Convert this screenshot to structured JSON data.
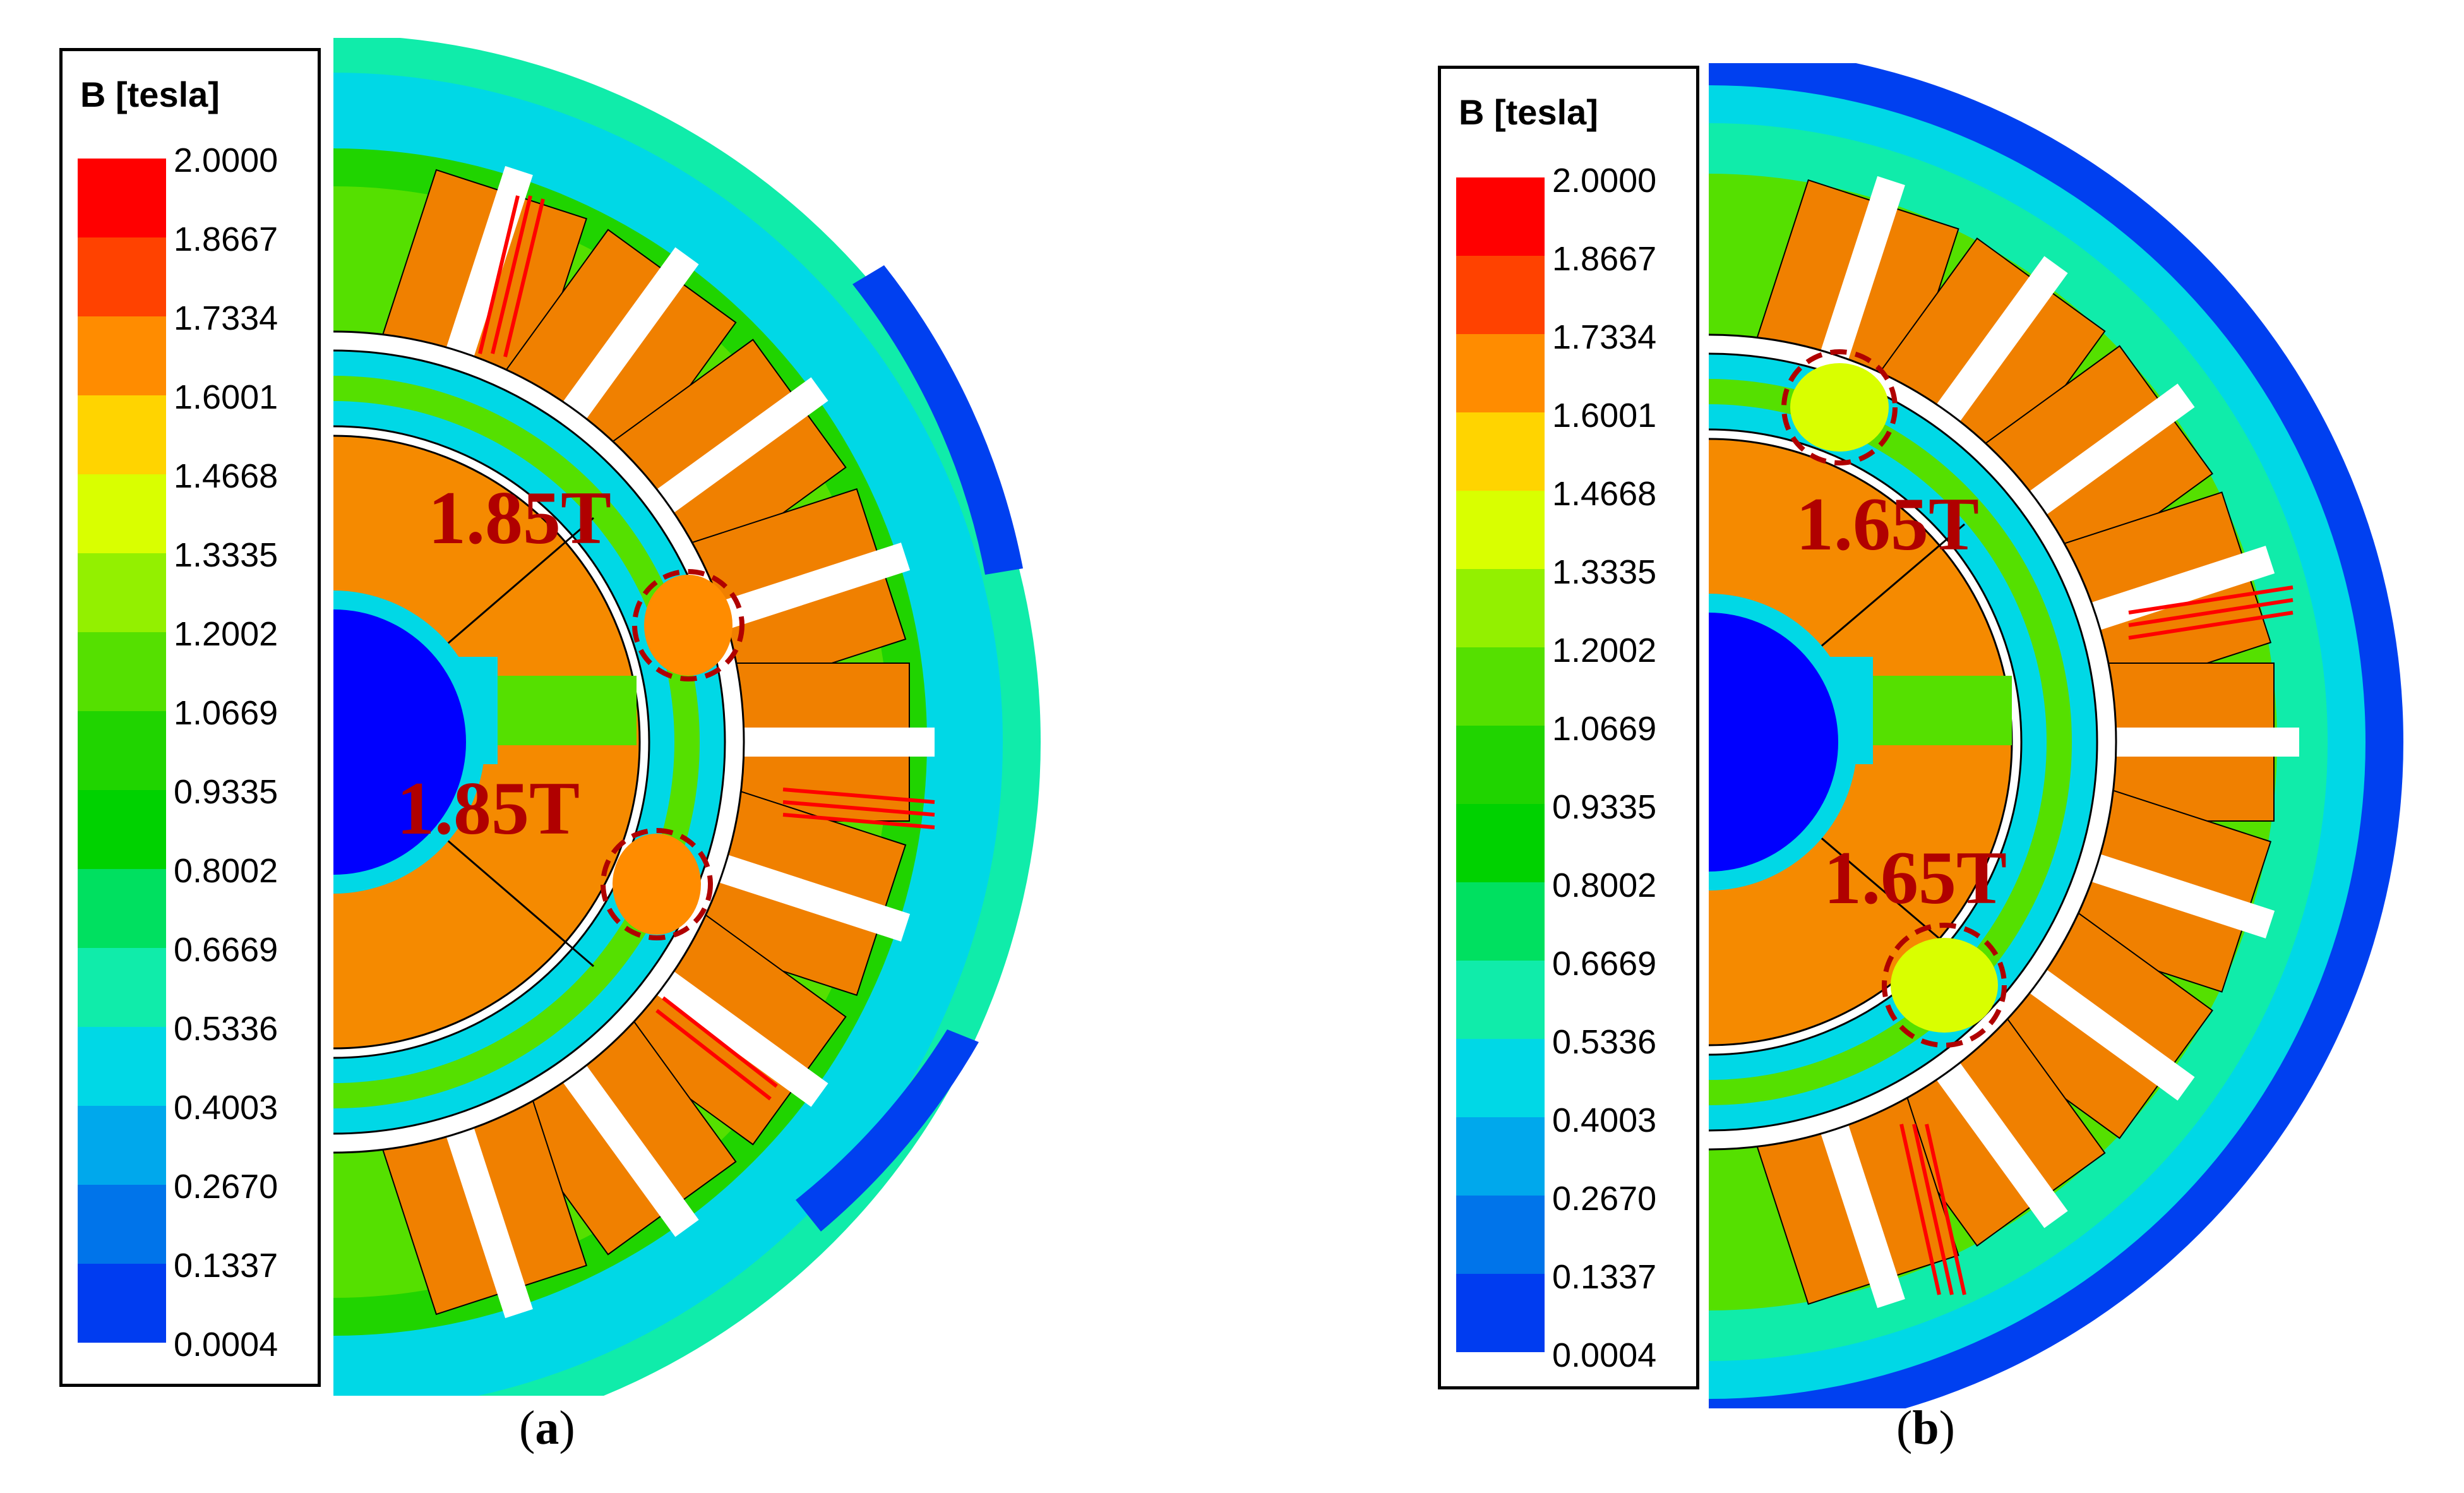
{
  "legend": {
    "title": "B [tesla]",
    "levels": [
      "2.0000",
      "1.8667",
      "1.7334",
      "1.6001",
      "1.4668",
      "1.3335",
      "1.2002",
      "1.0669",
      "0.9335",
      "0.8002",
      "0.6669",
      "0.5336",
      "0.4003",
      "0.2670",
      "0.1337",
      "0.0004"
    ],
    "colors": [
      "#ff0000",
      "#ff4200",
      "#ff8c00",
      "#ffd400",
      "#d9ff00",
      "#93f000",
      "#55e000",
      "#20d400",
      "#00d200",
      "#00e060",
      "#10ecaa",
      "#00d8e6",
      "#00a8ec",
      "#0074ea",
      "#003cf0",
      "#0000ff"
    ]
  },
  "panels": [
    {
      "label_open": "(",
      "label_letter": "a",
      "label_close": ")",
      "annotations": [
        "1.85T",
        "1.85T"
      ]
    },
    {
      "label_open": "(",
      "label_letter": "b",
      "label_close": ")",
      "annotations": [
        "1.65T",
        "1.65T"
      ]
    }
  ],
  "field_colors": {
    "coil": "#f08000",
    "rotor_core": "#f58a00",
    "shaft": "#0000ff",
    "high_flux": "#ff0000",
    "mid_flux": "#55e000",
    "low_flux": "#00d8e6",
    "annotation": "#b00000"
  }
}
